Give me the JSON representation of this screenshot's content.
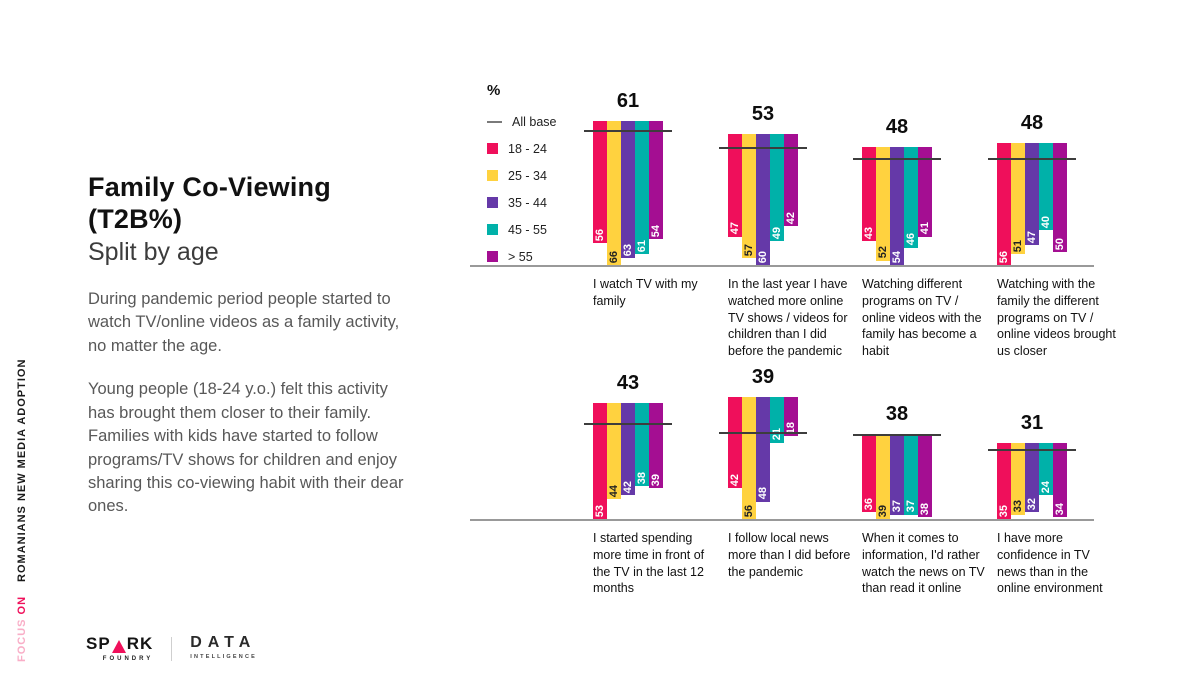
{
  "sidebar": {
    "focus_word": "FOCUS",
    "on_word": "ON",
    "topic": "ROMANIANS NEW MEDIA ADOPTION"
  },
  "header": {
    "title_line1": "Family Co-Viewing",
    "title_line2": "(T2B%)",
    "subtitle": "Split by age"
  },
  "body": {
    "para1": "During pandemic period people started to watch TV/online videos as a family activity, no matter the age.",
    "para2": "Young people (18-24 y.o.) felt this activity has brought them closer to their family. Families with kids have started to follow programs/TV shows for children and enjoy sharing this co-viewing habit with their dear ones."
  },
  "legend": {
    "percent": "%",
    "all_base_label": "All base",
    "items": [
      {
        "label": "18 - 24",
        "color": "#ef0f5b"
      },
      {
        "label": "25 - 34",
        "color": "#ffd23f"
      },
      {
        "label": "35 - 44",
        "color": "#6539a8"
      },
      {
        "label": "45 - 55",
        "color": "#00b1a9"
      },
      {
        "label": "> 55",
        "color": "#a40e92"
      }
    ]
  },
  "chart_data": {
    "type": "bar",
    "unit": "%",
    "title": "Family Co-Viewing (T2B%) split by age",
    "series_names": [
      "18 - 24",
      "25 - 34",
      "35 - 44",
      "45 - 55",
      "> 55"
    ],
    "colors": [
      "#ef0f5b",
      "#ffd23f",
      "#6539a8",
      "#00b1a9",
      "#a40e92"
    ],
    "all_base_line_color": "#3d3d3d",
    "ylim": [
      0,
      70
    ],
    "rows": [
      {
        "groups": [
          {
            "label": "I watch TV with my family",
            "all_base": 61,
            "values": [
              56,
              66,
              63,
              61,
              54
            ]
          },
          {
            "label": "In the last year I have watched more online TV shows / videos for children than I did before the pandemic",
            "all_base": 53,
            "values": [
              47,
              57,
              60,
              49,
              42
            ]
          },
          {
            "label": "Watching different programs on TV / online videos with the family has become a habit",
            "all_base": 48,
            "values": [
              43,
              52,
              54,
              46,
              41
            ]
          },
          {
            "label": "Watching with the family the different programs on TV / online videos brought us closer",
            "all_base": 48,
            "values": [
              56,
              51,
              47,
              40,
              50
            ]
          }
        ]
      },
      {
        "groups": [
          {
            "label": "I started spending more time in front of the TV in the last 12 months",
            "all_base": 43,
            "values": [
              53,
              44,
              42,
              38,
              39
            ]
          },
          {
            "label": "I follow local news more than I did before the pandemic",
            "all_base": 39,
            "values": [
              42,
              56,
              48,
              21,
              18
            ]
          },
          {
            "label": "When it comes to information, I'd rather watch the news on TV than read it online",
            "all_base": 38,
            "values": [
              36,
              39,
              37,
              37,
              38
            ]
          },
          {
            "label": "I have more confidence in TV news than in the online environment",
            "all_base": 31,
            "values": [
              35,
              33,
              32,
              24,
              34
            ]
          }
        ]
      }
    ]
  },
  "footer": {
    "spark_pre": "SP",
    "spark_post": "RK",
    "spark_sub": "FOUNDRY",
    "data_main": "DATA",
    "data_sub": "INTELLIGENCE"
  }
}
